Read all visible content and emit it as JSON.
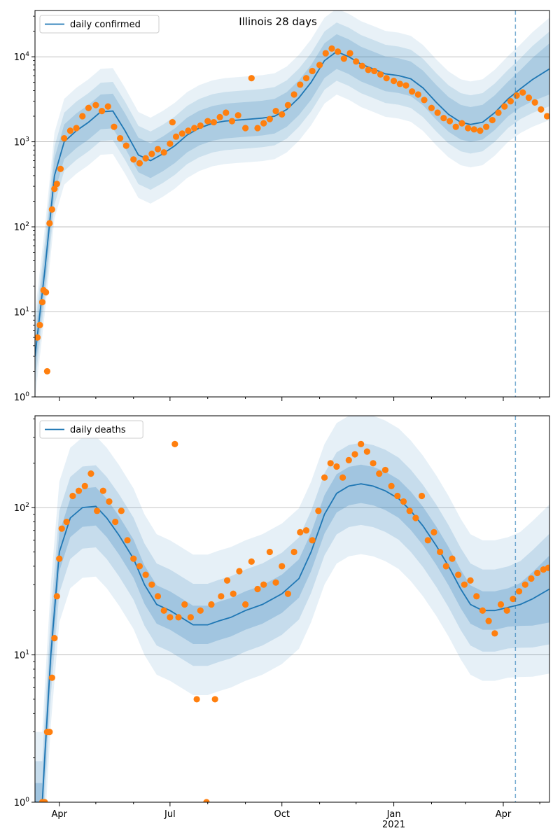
{
  "chart_data": [
    {
      "type": "scatter",
      "title": "Illinois 28 days",
      "yscale": "log",
      "ylim": [
        1,
        35000
      ],
      "xlim": [
        "2020-03-12",
        "2021-05-09"
      ],
      "grid": "y-major",
      "legend_placement": "top-left",
      "y_ticks": [
        {
          "value": 1,
          "base": "10",
          "exp": "0"
        },
        {
          "value": 10,
          "base": "10",
          "exp": "1"
        },
        {
          "value": 100,
          "base": "10",
          "exp": "2"
        },
        {
          "value": 1000,
          "base": "10",
          "exp": "3"
        },
        {
          "value": 10000,
          "base": "10",
          "exp": "4"
        }
      ],
      "x_ticks": [],
      "cutoff_date": "2021-04-11",
      "series": [
        {
          "name": "daily confirmed",
          "kind": "line",
          "color": "#1f77b4",
          "x": [
            "2020-03-12",
            "2020-03-20",
            "2020-03-28",
            "2020-04-05",
            "2020-04-15",
            "2020-04-25",
            "2020-05-05",
            "2020-05-15",
            "2020-05-25",
            "2020-06-05",
            "2020-06-15",
            "2020-06-25",
            "2020-07-05",
            "2020-07-15",
            "2020-07-25",
            "2020-08-05",
            "2020-08-15",
            "2020-08-25",
            "2020-09-05",
            "2020-09-15",
            "2020-09-25",
            "2020-10-05",
            "2020-10-15",
            "2020-10-25",
            "2020-11-05",
            "2020-11-15",
            "2020-11-25",
            "2020-12-05",
            "2020-12-15",
            "2020-12-25",
            "2021-01-05",
            "2021-01-15",
            "2021-01-25",
            "2021-02-05",
            "2021-02-15",
            "2021-02-25",
            "2021-03-05",
            "2021-03-15",
            "2021-03-25",
            "2021-04-05",
            "2021-04-15",
            "2021-04-25",
            "2021-05-09"
          ],
          "y": [
            3,
            30,
            400,
            1000,
            1350,
            1700,
            2250,
            2300,
            1350,
            700,
            600,
            720,
            900,
            1200,
            1450,
            1650,
            1750,
            1800,
            1850,
            1900,
            2000,
            2400,
            3300,
            5000,
            9000,
            11500,
            10000,
            8200,
            7200,
            6300,
            6000,
            5500,
            4300,
            2900,
            2100,
            1700,
            1600,
            1700,
            2200,
            3200,
            4200,
            5400,
            7200
          ]
        },
        {
          "name": "",
          "kind": "scatter",
          "color": "#ff7f0e",
          "x": [
            "2020-03-14",
            "2020-03-16",
            "2020-03-18",
            "2020-03-19",
            "2020-03-21",
            "2020-03-22",
            "2020-03-24",
            "2020-03-26",
            "2020-03-28",
            "2020-03-30",
            "2020-04-02",
            "2020-04-05",
            "2020-04-10",
            "2020-04-15",
            "2020-04-20",
            "2020-04-25",
            "2020-05-01",
            "2020-05-06",
            "2020-05-11",
            "2020-05-16",
            "2020-05-21",
            "2020-05-26",
            "2020-06-01",
            "2020-06-06",
            "2020-06-11",
            "2020-06-16",
            "2020-06-21",
            "2020-06-26",
            "2020-07-01",
            "2020-07-03",
            "2020-07-06",
            "2020-07-11",
            "2020-07-16",
            "2020-07-21",
            "2020-07-26",
            "2020-08-01",
            "2020-08-06",
            "2020-08-11",
            "2020-08-16",
            "2020-08-21",
            "2020-08-26",
            "2020-09-01",
            "2020-09-06",
            "2020-09-11",
            "2020-09-16",
            "2020-09-21",
            "2020-09-26",
            "2020-10-01",
            "2020-10-06",
            "2020-10-11",
            "2020-10-16",
            "2020-10-21",
            "2020-10-26",
            "2020-11-01",
            "2020-11-06",
            "2020-11-11",
            "2020-11-16",
            "2020-11-21",
            "2020-11-26",
            "2020-12-01",
            "2020-12-06",
            "2020-12-11",
            "2020-12-16",
            "2020-12-21",
            "2020-12-26",
            "2021-01-01",
            "2021-01-06",
            "2021-01-11",
            "2021-01-16",
            "2021-01-21",
            "2021-01-26",
            "2021-02-01",
            "2021-02-06",
            "2021-02-11",
            "2021-02-16",
            "2021-02-21",
            "2021-02-26",
            "2021-03-03",
            "2021-03-08",
            "2021-03-13",
            "2021-03-18",
            "2021-03-23",
            "2021-03-28",
            "2021-04-02",
            "2021-04-07",
            "2021-04-12",
            "2021-04-17",
            "2021-04-22",
            "2021-04-27",
            "2021-05-02",
            "2021-05-07"
          ],
          "y": [
            5,
            7,
            13,
            18,
            17,
            2,
            110,
            160,
            280,
            320,
            480,
            1100,
            1350,
            1450,
            2000,
            2500,
            2700,
            2300,
            2600,
            1500,
            1100,
            900,
            620,
            560,
            640,
            720,
            820,
            750,
            950,
            1700,
            1150,
            1250,
            1350,
            1450,
            1550,
            1750,
            1700,
            1950,
            2200,
            1750,
            2050,
            1450,
            5600,
            1450,
            1650,
            1850,
            2300,
            2100,
            2700,
            3600,
            4700,
            5600,
            6800,
            8000,
            11000,
            12500,
            11500,
            9500,
            11000,
            8800,
            7800,
            7000,
            6800,
            6200,
            5600,
            5200,
            4800,
            4600,
            3900,
            3600,
            3100,
            2500,
            2200,
            1900,
            1750,
            1500,
            1650,
            1450,
            1400,
            1350,
            1500,
            1800,
            2200,
            2600,
            3000,
            3500,
            3800,
            3300,
            2900,
            2400,
            2000
          ]
        }
      ]
    },
    {
      "type": "scatter",
      "title": "",
      "yscale": "log",
      "ylim": [
        1,
        420
      ],
      "xlim": [
        "2020-03-12",
        "2021-05-09"
      ],
      "grid": "y-major",
      "legend_placement": "top-left",
      "y_ticks": [
        {
          "value": 1,
          "base": "10",
          "exp": "0"
        },
        {
          "value": 10,
          "base": "10",
          "exp": "1"
        },
        {
          "value": 100,
          "base": "10",
          "exp": "2"
        }
      ],
      "x_ticks": [
        {
          "date": "2020-04-01",
          "label": "Apr",
          "sub": ""
        },
        {
          "date": "2020-07-01",
          "label": "Jul",
          "sub": ""
        },
        {
          "date": "2020-10-01",
          "label": "Oct",
          "sub": ""
        },
        {
          "date": "2021-01-01",
          "label": "Jan",
          "sub": "2021"
        },
        {
          "date": "2021-04-01",
          "label": "Apr",
          "sub": ""
        }
      ],
      "cutoff_date": "2021-04-11",
      "series": [
        {
          "name": "daily deaths",
          "kind": "line",
          "color": "#1f77b4",
          "x": [
            "2020-03-12",
            "2020-03-18",
            "2020-03-20",
            "2020-03-25",
            "2020-04-01",
            "2020-04-10",
            "2020-04-20",
            "2020-05-01",
            "2020-05-10",
            "2020-05-20",
            "2020-06-01",
            "2020-06-10",
            "2020-06-20",
            "2020-07-01",
            "2020-07-10",
            "2020-07-20",
            "2020-08-01",
            "2020-08-10",
            "2020-08-20",
            "2020-09-01",
            "2020-09-15",
            "2020-10-01",
            "2020-10-15",
            "2020-10-25",
            "2020-11-05",
            "2020-11-15",
            "2020-11-25",
            "2020-12-05",
            "2020-12-15",
            "2020-12-25",
            "2021-01-05",
            "2021-01-15",
            "2021-01-25",
            "2021-02-05",
            "2021-02-15",
            "2021-02-25",
            "2021-03-05",
            "2021-03-15",
            "2021-03-25",
            "2021-04-05",
            "2021-04-15",
            "2021-04-25",
            "2021-05-09"
          ],
          "y": [
            1,
            1,
            2,
            10,
            50,
            85,
            100,
            102,
            85,
            65,
            45,
            30,
            22,
            20,
            18,
            16,
            16,
            17,
            18,
            20,
            22,
            26,
            33,
            50,
            90,
            125,
            140,
            145,
            140,
            130,
            115,
            95,
            75,
            55,
            40,
            28,
            22,
            20,
            20,
            21,
            22,
            24,
            28
          ]
        },
        {
          "name": "",
          "kind": "scatter",
          "color": "#ff7f0e",
          "x": [
            "2020-03-18",
            "2020-03-20",
            "2020-03-22",
            "2020-03-24",
            "2020-03-26",
            "2020-03-28",
            "2020-03-30",
            "2020-04-01",
            "2020-04-03",
            "2020-04-07",
            "2020-04-12",
            "2020-04-17",
            "2020-04-22",
            "2020-04-27",
            "2020-05-02",
            "2020-05-07",
            "2020-05-12",
            "2020-05-17",
            "2020-05-22",
            "2020-05-27",
            "2020-06-01",
            "2020-06-06",
            "2020-06-11",
            "2020-06-16",
            "2020-06-21",
            "2020-06-26",
            "2020-07-01",
            "2020-07-05",
            "2020-07-08",
            "2020-07-13",
            "2020-07-18",
            "2020-07-23",
            "2020-07-26",
            "2020-07-31",
            "2020-08-04",
            "2020-08-07",
            "2020-08-12",
            "2020-08-17",
            "2020-08-22",
            "2020-08-27",
            "2020-09-01",
            "2020-09-06",
            "2020-09-11",
            "2020-09-16",
            "2020-09-21",
            "2020-09-26",
            "2020-10-01",
            "2020-10-06",
            "2020-10-11",
            "2020-10-16",
            "2020-10-21",
            "2020-10-26",
            "2020-10-31",
            "2020-11-05",
            "2020-11-10",
            "2020-11-15",
            "2020-11-20",
            "2020-11-25",
            "2020-11-30",
            "2020-12-05",
            "2020-12-10",
            "2020-12-15",
            "2020-12-20",
            "2020-12-25",
            "2020-12-30",
            "2021-01-04",
            "2021-01-09",
            "2021-01-14",
            "2021-01-19",
            "2021-01-24",
            "2021-01-29",
            "2021-02-03",
            "2021-02-08",
            "2021-02-13",
            "2021-02-18",
            "2021-02-23",
            "2021-02-28",
            "2021-03-05",
            "2021-03-10",
            "2021-03-15",
            "2021-03-20",
            "2021-03-25",
            "2021-03-30",
            "2021-04-04",
            "2021-04-09",
            "2021-04-14",
            "2021-04-19",
            "2021-04-24",
            "2021-04-29",
            "2021-05-04",
            "2021-05-08"
          ],
          "y": [
            1,
            1,
            3,
            3,
            7,
            13,
            25,
            45,
            72,
            80,
            120,
            130,
            140,
            170,
            95,
            130,
            110,
            80,
            95,
            60,
            45,
            40,
            35,
            30,
            25,
            20,
            18,
            270,
            18,
            22,
            18,
            5,
            20,
            1,
            22,
            5,
            25,
            32,
            26,
            37,
            22,
            43,
            28,
            30,
            50,
            31,
            40,
            26,
            50,
            68,
            70,
            60,
            95,
            160,
            200,
            190,
            160,
            210,
            230,
            270,
            240,
            200,
            170,
            180,
            140,
            120,
            110,
            95,
            85,
            120,
            60,
            68,
            50,
            40,
            45,
            35,
            30,
            32,
            25,
            20,
            17,
            14,
            22,
            20,
            24,
            27,
            30,
            33,
            36,
            38,
            39
          ]
        }
      ]
    }
  ]
}
